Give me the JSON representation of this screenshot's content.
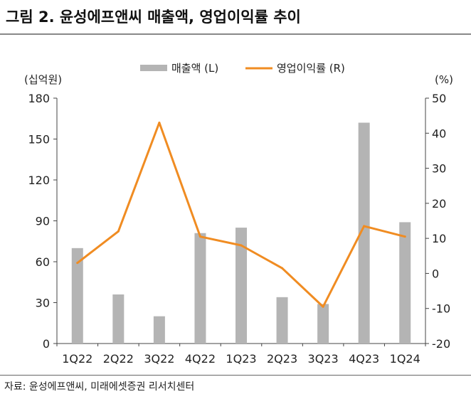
{
  "header": {
    "title": "그림 2. 윤성에프앤씨 매출액, 영업이익률 추이"
  },
  "footer": {
    "source": "자료: 윤성에프앤씨, 미래에셋증권 리서치센터"
  },
  "colors": {
    "bar": "#b4b4b4",
    "line": "#f08c22",
    "axis": "#444444"
  },
  "chart_data": {
    "type": "bar",
    "categories": [
      "1Q22",
      "2Q22",
      "3Q22",
      "4Q22",
      "1Q23",
      "2Q23",
      "3Q23",
      "4Q23",
      "1Q24"
    ],
    "series": [
      {
        "name": "매출액 (L)",
        "type": "bar",
        "axis": "left",
        "values": [
          70,
          36,
          20,
          81,
          85,
          34,
          29,
          162,
          89
        ]
      },
      {
        "name": "영업이익률 (R)",
        "type": "line",
        "axis": "right",
        "values": [
          3,
          12,
          43,
          10.5,
          8,
          1.5,
          -9.5,
          13.5,
          10.5
        ]
      }
    ],
    "ylabel_left": "(십억원)",
    "ylabel_right": "(%)",
    "ylim_left": [
      0,
      180
    ],
    "ylim_right": [
      -20,
      50
    ],
    "yticks_left": [
      0,
      30,
      60,
      90,
      120,
      150,
      180
    ],
    "yticks_right": [
      -20,
      -10,
      0,
      10,
      20,
      30,
      40,
      50
    ],
    "grid": false,
    "legend": "top-center"
  }
}
